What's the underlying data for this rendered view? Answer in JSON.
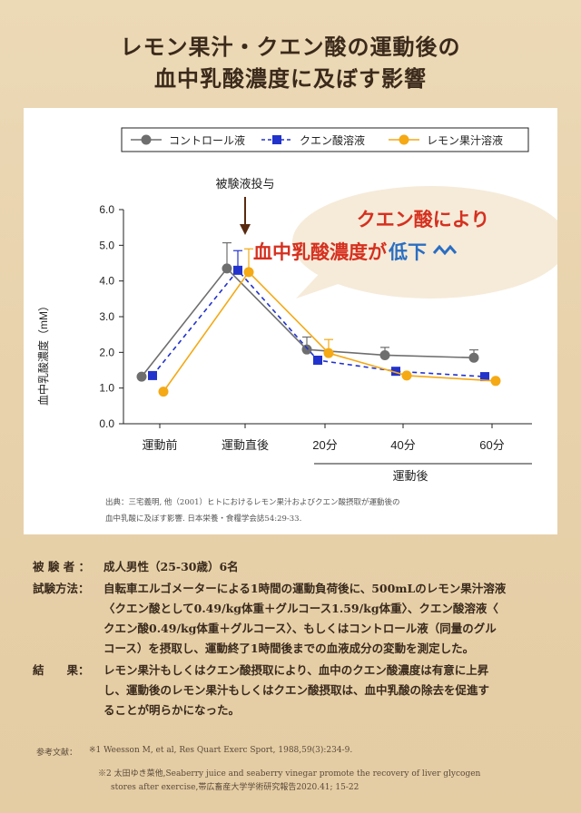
{
  "title_line1": "レモン果汁・クエン酸の運動後の",
  "title_line2": "血中乳酸濃度に及ぼす影響",
  "chart_data": {
    "type": "line",
    "ylabel": "血中乳酸濃度（mM）",
    "yticks": [
      "6.0",
      "5.0",
      "4.0",
      "3.0",
      "2.0",
      "1.0",
      "0.0"
    ],
    "ylim": [
      0,
      6
    ],
    "categories": [
      "運動前",
      "運動直後",
      "20分",
      "40分",
      "60分"
    ],
    "xgroup_label": "運動後",
    "annotation_arrow": "被験液投与",
    "callout_line1": "クエン酸により",
    "callout_line2a": "血中乳酸濃度が",
    "callout_line2b": "低下",
    "series": [
      {
        "name": "コントロール液",
        "color": "#6e6e6e",
        "marker": "circle",
        "dash": false,
        "values": [
          1.32,
          4.35,
          2.08,
          1.92,
          1.85
        ],
        "errors": [
          0,
          0.72,
          0.35,
          0.22,
          0.22
        ]
      },
      {
        "name": "クエン酸溶液",
        "color": "#2233cc",
        "marker": "square",
        "dash": true,
        "values": [
          1.35,
          4.3,
          1.78,
          1.47,
          1.32
        ],
        "errors": [
          0,
          0.55,
          0,
          0,
          0
        ]
      },
      {
        "name": "レモン果汁溶液",
        "color": "#f4a915",
        "marker": "circle",
        "dash": false,
        "values": [
          0.9,
          4.25,
          1.98,
          1.35,
          1.2
        ],
        "errors": [
          0,
          0.65,
          0.38,
          0,
          0
        ]
      }
    ]
  },
  "source_line1": "出典：三宅義明, 他（2001）ヒトにおけるレモン果汁およびクエン酸摂取が運動後の",
  "source_line2": "血中乳酸に及ぼす影響. 日本栄養・食糧学会誌54:29-33.",
  "subjects_label": "被 験 者 ：",
  "subjects_text": "成人男性（25-30歳）6名",
  "method_label": "試験方法：",
  "method_lines": [
    "自転車エルゴメーターによる1時間の運動負荷後に、500mLのレモン果汁溶液",
    "〈クエン酸として0.49/kg体重＋グルコース1.59/kg体重〉、クエン酸溶液〈",
    "クエン酸0.49/kg体重＋グルコース〉、もしくはコントロール液（同量のグル",
    "コース）を摂取し、運動終了1時間後までの血液成分の変動を測定した。"
  ],
  "result_label": "結　　果：",
  "result_lines": [
    "レモン果汁もしくはクエン酸摂取により、血中のクエン酸濃度は有意に上昇",
    "し、運動後のレモン果汁もしくはクエン酸摂取は、血中乳酸の除去を促進す",
    "ることが明らかになった。"
  ],
  "refs_label": "参考文献：",
  "ref1": "※1 Weesson M, et al, Res Quart Exerc Sport, 1988,59(3):234-9.",
  "ref2a": "※2 太田ゆき菜他,Seaberry juice and seaberry vinegar promote the recovery of liver glycogen",
  "ref2b": "stores after exercise,帯広畜産大学学術研究報告2020.41; 15-22"
}
